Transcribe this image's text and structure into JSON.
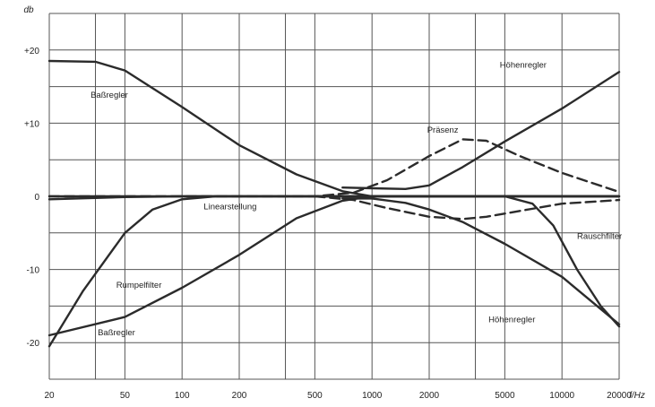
{
  "chart_data": {
    "type": "line",
    "title": "",
    "xlabel": "f/Hz",
    "ylabel": "db",
    "x_scale": "log",
    "xlim": [
      20,
      20000
    ],
    "ylim": [
      -25,
      25
    ],
    "grid": true,
    "x_ticks": [
      {
        "value": 20,
        "label": "20"
      },
      {
        "value": 50,
        "label": "50"
      },
      {
        "value": 100,
        "label": "100"
      },
      {
        "value": 200,
        "label": "200"
      },
      {
        "value": 500,
        "label": "500"
      },
      {
        "value": 1000,
        "label": "1000"
      },
      {
        "value": 2000,
        "label": "2000"
      },
      {
        "value": 5000,
        "label": "5000"
      },
      {
        "value": 10000,
        "label": "10000"
      },
      {
        "value": 20000,
        "label": "20000"
      }
    ],
    "x_grid": [
      20,
      35,
      50,
      100,
      200,
      350,
      500,
      1000,
      2000,
      3500,
      5000,
      10000,
      20000
    ],
    "y_ticks": [
      {
        "value": 20,
        "label": "+20"
      },
      {
        "value": 10,
        "label": "+10"
      },
      {
        "value": 0,
        "label": "0"
      },
      {
        "value": -10,
        "label": "-10"
      },
      {
        "value": -20,
        "label": "-20"
      }
    ],
    "y_grid": [
      25,
      20,
      15,
      10,
      5,
      0,
      -5,
      -10,
      -15,
      -20,
      -25
    ],
    "series": [
      {
        "name": "Baßregler",
        "dashed": false,
        "label_at": [
          33,
          13.5
        ],
        "points": [
          [
            20,
            18.5
          ],
          [
            35,
            18.4
          ],
          [
            50,
            17.2
          ],
          [
            100,
            12.2
          ],
          [
            200,
            7
          ],
          [
            400,
            3
          ],
          [
            700,
            0.7
          ],
          [
            1000,
            0
          ],
          [
            20000,
            0
          ]
        ]
      },
      {
        "name": "Baßregler",
        "dashed": false,
        "label_at": [
          36,
          -19
        ],
        "points": [
          [
            20,
            -19
          ],
          [
            50,
            -16.5
          ],
          [
            100,
            -12.5
          ],
          [
            200,
            -8
          ],
          [
            400,
            -3
          ],
          [
            700,
            -0.6
          ],
          [
            1000,
            0
          ],
          [
            20000,
            0
          ]
        ]
      },
      {
        "name": "Rumpelfilter",
        "dashed": false,
        "label_at": [
          45,
          -12.5
        ],
        "points": [
          [
            20,
            -20.5
          ],
          [
            30,
            -13
          ],
          [
            50,
            -5
          ],
          [
            70,
            -1.8
          ],
          [
            100,
            -0.4
          ],
          [
            150,
            0
          ],
          [
            20000,
            0
          ]
        ]
      },
      {
        "name": "Linearstellung",
        "dashed": false,
        "label_at": [
          130,
          -1.8
        ],
        "points": [
          [
            20,
            -0.4
          ],
          [
            50,
            -0.1
          ],
          [
            100,
            0
          ],
          [
            20000,
            0
          ]
        ]
      },
      {
        "name": "Präsenz",
        "dashed": true,
        "label_at": [
          1950,
          8.7
        ],
        "points": [
          [
            20,
            0
          ],
          [
            500,
            0
          ],
          [
            800,
            0.5
          ],
          [
            1200,
            2.2
          ],
          [
            2000,
            5.5
          ],
          [
            3000,
            7.8
          ],
          [
            4000,
            7.6
          ],
          [
            6000,
            5.5
          ],
          [
            10000,
            3.2
          ],
          [
            20000,
            0.6
          ]
        ]
      },
      {
        "name": "",
        "dashed": true,
        "label_at": null,
        "points": [
          [
            500,
            0
          ],
          [
            800,
            -0.5
          ],
          [
            1200,
            -1.6
          ],
          [
            2000,
            -2.8
          ],
          [
            3000,
            -3.1
          ],
          [
            4000,
            -2.8
          ],
          [
            6000,
            -2
          ],
          [
            10000,
            -1
          ],
          [
            20000,
            -0.5
          ]
        ]
      },
      {
        "name": "Höhenregler",
        "dashed": false,
        "label_at": [
          4700,
          17.6
        ],
        "points": [
          [
            700,
            1.2
          ],
          [
            1000,
            1.1
          ],
          [
            1500,
            1
          ],
          [
            2000,
            1.5
          ],
          [
            3000,
            4
          ],
          [
            5000,
            7.5
          ],
          [
            10000,
            12
          ],
          [
            20000,
            17
          ]
        ]
      },
      {
        "name": "Höhenregler",
        "dashed": false,
        "label_at": [
          4100,
          -17.2
        ],
        "points": [
          [
            700,
            -0.3
          ],
          [
            1000,
            -0.3
          ],
          [
            1500,
            -0.9
          ],
          [
            2000,
            -1.8
          ],
          [
            3000,
            -3.5
          ],
          [
            5000,
            -6.5
          ],
          [
            10000,
            -11
          ],
          [
            20000,
            -17.5
          ]
        ]
      },
      {
        "name": "Rauschfilter",
        "dashed": false,
        "label_at": [
          12000,
          -5.8
        ],
        "points": [
          [
            20,
            0
          ],
          [
            5000,
            0
          ],
          [
            7000,
            -1
          ],
          [
            9000,
            -4
          ],
          [
            12000,
            -10
          ],
          [
            16000,
            -15
          ],
          [
            20000,
            -17.8
          ]
        ]
      }
    ]
  }
}
